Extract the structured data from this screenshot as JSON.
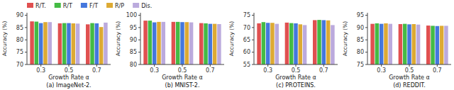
{
  "chart_data": [
    {
      "type": "bar",
      "title": "(a) ImageNet-2.",
      "xlabel": "Growth Rate α",
      "ylabel": "Accuracy (%)",
      "categories": [
        "0.3",
        "0.5",
        "0.7"
      ],
      "series": [
        {
          "name": "R/T.",
          "color": "#e05050",
          "values": [
            87.5,
            86.7,
            86.3
          ]
        },
        {
          "name": "R/T",
          "color": "#44bb44",
          "values": [
            87.4,
            86.8,
            86.8
          ]
        },
        {
          "name": "F/T",
          "color": "#4477dd",
          "values": [
            86.8,
            86.8,
            86.7
          ]
        },
        {
          "name": "R/P",
          "color": "#ddaa33",
          "values": [
            87.2,
            86.7,
            85.2
          ]
        },
        {
          "name": "Dis.",
          "color": "#bbaadd",
          "values": [
            87.2,
            86.6,
            87.0
          ]
        }
      ],
      "ylim": [
        70,
        91
      ],
      "yticks": [
        70,
        75,
        80,
        85,
        90
      ],
      "grid": false,
      "legend": "top"
    },
    {
      "type": "bar",
      "title": "(b) MNIST-2.",
      "xlabel": "Growth Rate α",
      "ylabel": "Accuracy (%)",
      "categories": [
        "0.3",
        "0.5",
        "0.7"
      ],
      "series": [
        {
          "name": "R/T.",
          "color": "#e05050",
          "values": [
            97.8,
            97.3,
            96.8
          ]
        },
        {
          "name": "R/T",
          "color": "#44bb44",
          "values": [
            97.8,
            97.3,
            96.7
          ]
        },
        {
          "name": "F/T",
          "color": "#4477dd",
          "values": [
            97.1,
            97.2,
            96.5
          ]
        },
        {
          "name": "R/P",
          "color": "#ddaa33",
          "values": [
            97.3,
            97.2,
            96.5
          ]
        },
        {
          "name": "Dis.",
          "color": "#bbaadd",
          "values": [
            97.3,
            97.1,
            96.4
          ]
        }
      ],
      "ylim": [
        80,
        101
      ],
      "yticks": [
        80,
        85,
        90,
        95,
        100
      ],
      "grid": false,
      "legend": false
    },
    {
      "type": "bar",
      "title": "(c) PROTEINS.",
      "xlabel": "Growth Rate α",
      "ylabel": "Accuracy (%)",
      "categories": [
        "0.3",
        "0.5",
        "0.7"
      ],
      "series": [
        {
          "name": "R/T.",
          "color": "#e05050",
          "values": [
            71.7,
            72.0,
            73.0
          ]
        },
        {
          "name": "R/T",
          "color": "#44bb44",
          "values": [
            72.2,
            71.8,
            73.1
          ]
        },
        {
          "name": "F/T",
          "color": "#4477dd",
          "values": [
            71.9,
            71.7,
            73.0
          ]
        },
        {
          "name": "R/P",
          "color": "#ddaa33",
          "values": [
            71.9,
            71.3,
            72.9
          ]
        },
        {
          "name": "Dis.",
          "color": "#bbaadd",
          "values": [
            71.5,
            71.0,
            71.0
          ]
        }
      ],
      "ylim": [
        55,
        76
      ],
      "yticks": [
        55,
        60,
        65,
        70,
        75
      ],
      "grid": false,
      "legend": false
    },
    {
      "type": "bar",
      "title": "(d) REDDIT.",
      "xlabel": "Growth Rate α",
      "ylabel": "Accuracy (%)",
      "categories": [
        "0.3",
        "0.5",
        "0.7"
      ],
      "series": [
        {
          "name": "R/T.",
          "color": "#e05050",
          "values": [
            91.5,
            91.4,
            90.8
          ]
        },
        {
          "name": "R/T",
          "color": "#44bb44",
          "values": [
            91.7,
            91.5,
            90.7
          ]
        },
        {
          "name": "F/T",
          "color": "#4477dd",
          "values": [
            91.5,
            91.3,
            90.6
          ]
        },
        {
          "name": "R/P",
          "color": "#ddaa33",
          "values": [
            91.7,
            91.4,
            90.7
          ]
        },
        {
          "name": "Dis.",
          "color": "#bbaadd",
          "values": [
            91.5,
            91.2,
            90.7
          ]
        }
      ],
      "ylim": [
        75,
        96
      ],
      "yticks": [
        75,
        80,
        85,
        90,
        95
      ],
      "grid": false,
      "legend": false
    }
  ]
}
